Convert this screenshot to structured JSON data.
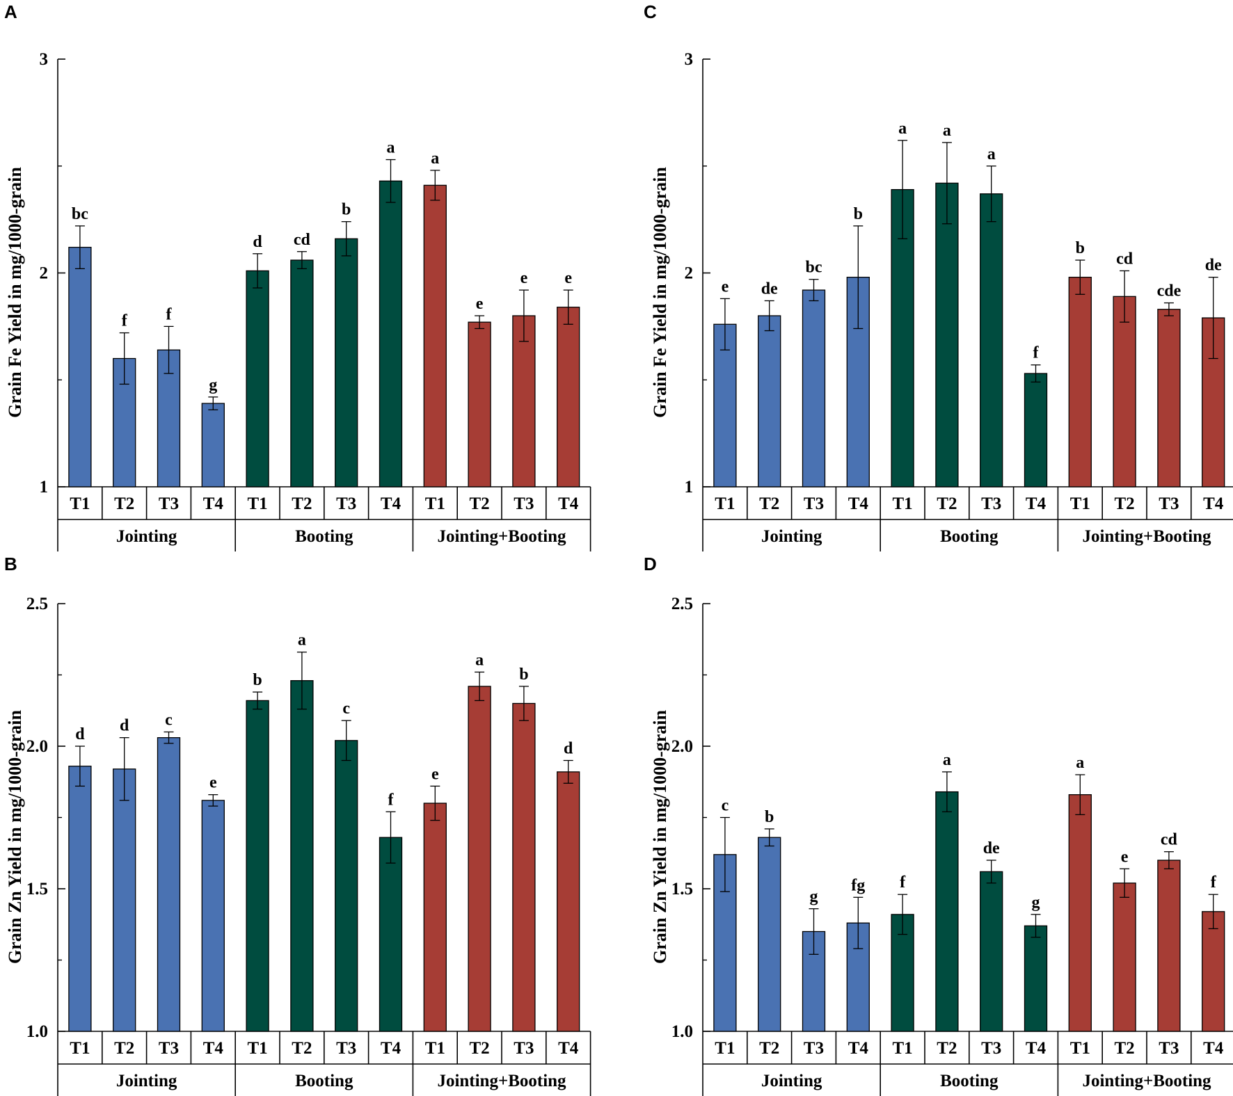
{
  "colors": {
    "Jointing": "#4a72b2",
    "Booting": "#004c3f",
    "Jointing+Booting": "#a63d35"
  },
  "chart_data": [
    {
      "type": "bar",
      "panel": "A",
      "ylabel": "Grain Fe Yield in mg/1000-grain",
      "ylim": [
        1,
        3
      ],
      "yticks": [
        "1",
        "2",
        "3"
      ],
      "groups": [
        "Jointing",
        "Booting",
        "Jointing+Booting"
      ],
      "categories": [
        "T1",
        "T2",
        "T3",
        "T4"
      ],
      "series": [
        {
          "name": "Jointing",
          "values": [
            2.12,
            1.6,
            1.64,
            1.39
          ],
          "errors": [
            0.1,
            0.12,
            0.11,
            0.03
          ],
          "letters": [
            "bc",
            "f",
            "f",
            "g"
          ]
        },
        {
          "name": "Booting",
          "values": [
            2.01,
            2.06,
            2.16,
            2.43
          ],
          "errors": [
            0.08,
            0.04,
            0.08,
            0.1
          ],
          "letters": [
            "d",
            "cd",
            "b",
            "a"
          ]
        },
        {
          "name": "Jointing+Booting",
          "values": [
            2.41,
            1.77,
            1.8,
            1.84
          ],
          "errors": [
            0.07,
            0.03,
            0.12,
            0.08
          ],
          "letters": [
            "a",
            "e",
            "e",
            "e"
          ]
        }
      ]
    },
    {
      "type": "bar",
      "panel": "C",
      "ylabel": "Grain Fe Yield in mg/1000-grain",
      "ylim": [
        1,
        3
      ],
      "yticks": [
        "1",
        "2",
        "3"
      ],
      "groups": [
        "Jointing",
        "Booting",
        "Jointing+Booting"
      ],
      "categories": [
        "T1",
        "T2",
        "T3",
        "T4"
      ],
      "series": [
        {
          "name": "Jointing",
          "values": [
            1.76,
            1.8,
            1.92,
            1.98
          ],
          "errors": [
            0.12,
            0.07,
            0.05,
            0.24
          ],
          "letters": [
            "e",
            "de",
            "bc",
            "b"
          ]
        },
        {
          "name": "Booting",
          "values": [
            2.39,
            2.42,
            2.37,
            1.53
          ],
          "errors": [
            0.23,
            0.19,
            0.13,
            0.04
          ],
          "letters": [
            "a",
            "a",
            "a",
            "f"
          ]
        },
        {
          "name": "Jointing+Booting",
          "values": [
            1.98,
            1.89,
            1.83,
            1.79
          ],
          "errors": [
            0.08,
            0.12,
            0.03,
            0.19
          ],
          "letters": [
            "b",
            "cd",
            "cde",
            "de"
          ]
        }
      ]
    },
    {
      "type": "bar",
      "panel": "B",
      "ylabel": "Grain Zn Yield in mg/1000-grain",
      "ylim": [
        1.0,
        2.5
      ],
      "yticks": [
        "1.0",
        "1.5",
        "2.0",
        "2.5"
      ],
      "groups": [
        "Jointing",
        "Booting",
        "Jointing+Booting"
      ],
      "categories": [
        "T1",
        "T2",
        "T3",
        "T4"
      ],
      "series": [
        {
          "name": "Jointing",
          "values": [
            1.93,
            1.92,
            2.03,
            1.81
          ],
          "errors": [
            0.07,
            0.11,
            0.02,
            0.02
          ],
          "letters": [
            "d",
            "d",
            "c",
            "e"
          ]
        },
        {
          "name": "Booting",
          "values": [
            2.16,
            2.23,
            2.02,
            1.68
          ],
          "errors": [
            0.03,
            0.1,
            0.07,
            0.09
          ],
          "letters": [
            "b",
            "a",
            "c",
            "f"
          ]
        },
        {
          "name": "Jointing+Booting",
          "values": [
            1.8,
            2.21,
            2.15,
            1.91
          ],
          "errors": [
            0.06,
            0.05,
            0.06,
            0.04
          ],
          "letters": [
            "e",
            "a",
            "b",
            "d"
          ]
        }
      ]
    },
    {
      "type": "bar",
      "panel": "D",
      "ylabel": "Grain Zn Yield in mg/1000-grain",
      "ylim": [
        1.0,
        2.5
      ],
      "yticks": [
        "1.0",
        "1.5",
        "2.0",
        "2.5"
      ],
      "groups": [
        "Jointing",
        "Booting",
        "Jointing+Booting"
      ],
      "categories": [
        "T1",
        "T2",
        "T3",
        "T4"
      ],
      "series": [
        {
          "name": "Jointing",
          "values": [
            1.62,
            1.68,
            1.35,
            1.38
          ],
          "errors": [
            0.13,
            0.03,
            0.08,
            0.09
          ],
          "letters": [
            "c",
            "b",
            "g",
            "fg"
          ]
        },
        {
          "name": "Booting",
          "values": [
            1.41,
            1.84,
            1.56,
            1.37
          ],
          "errors": [
            0.07,
            0.07,
            0.04,
            0.04
          ],
          "letters": [
            "f",
            "a",
            "de",
            "g"
          ]
        },
        {
          "name": "Jointing+Booting",
          "values": [
            1.83,
            1.52,
            1.6,
            1.42
          ],
          "errors": [
            0.07,
            0.05,
            0.03,
            0.06
          ],
          "letters": [
            "a",
            "e",
            "cd",
            "f"
          ]
        }
      ]
    }
  ]
}
